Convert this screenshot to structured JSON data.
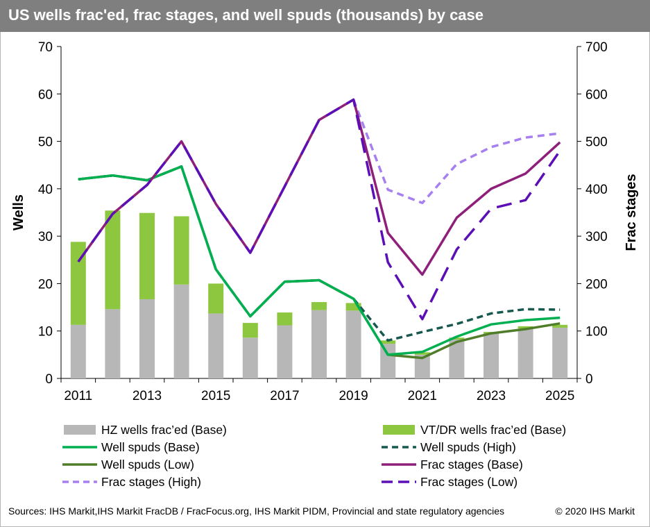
{
  "title": "US wells frac'ed, frac stages, and well spuds (thousands) by case",
  "footer": {
    "sources": "Sources: IHS Markit,IHS Markit FracDB / FracFocus.org, IHS Markit PIDM, Provincial and state regulatory agencies",
    "copyright": "© 2020 IHS Markit"
  },
  "colors": {
    "title_bar": "#7f7f7f",
    "hz_bar": "#b7b7b7",
    "vt_bar": "#8dc63f",
    "spuds_base": "#00b050",
    "spuds_high": "#17584f",
    "spuds_low": "#4f7d29",
    "frac_base": "#8e1f7a",
    "frac_high": "#a67ff0",
    "frac_low": "#5b0fb5"
  },
  "legend": [
    {
      "key": "hz",
      "label": "HZ wells frac’ed (Base)"
    },
    {
      "key": "vt",
      "label": "VT/DR wells frac’ed (Base)"
    },
    {
      "key": "spuds_base",
      "label": "Well spuds (Base)"
    },
    {
      "key": "spuds_high",
      "label": "Well spuds (High)"
    },
    {
      "key": "spuds_low",
      "label": "Well spuds (Low)"
    },
    {
      "key": "frac_base",
      "label": "Frac stages (Base)"
    },
    {
      "key": "frac_high",
      "label": "Frac stages (High)"
    },
    {
      "key": "frac_low",
      "label": "Frac stages (Low)"
    }
  ],
  "chart_data": {
    "type": "bar",
    "title": "US wells frac'ed, frac stages, and well spuds (thousands) by case",
    "ylabel": "Wells",
    "y2label": "Frac stages",
    "ylim": [
      0,
      70
    ],
    "y2lim": [
      0,
      700
    ],
    "yticks": [
      "0",
      "10",
      "20",
      "30",
      "40",
      "50",
      "60",
      "70"
    ],
    "y2ticks": [
      "0",
      "100",
      "200",
      "300",
      "400",
      "500",
      "600",
      "700"
    ],
    "x": [
      2011,
      2012,
      2013,
      2014,
      2015,
      2016,
      2017,
      2018,
      2019,
      2020,
      2021,
      2022,
      2023,
      2024,
      2025
    ],
    "xticks": [
      "2011",
      "2013",
      "2015",
      "2017",
      "2019",
      "2021",
      "2023",
      "2025"
    ],
    "grid": false,
    "legend_position": "bottom",
    "bars": [
      {
        "key": "hz",
        "name": "HZ wells frac’ed (Base)",
        "axis": "left",
        "stacked": true,
        "values": [
          11.3,
          14.6,
          16.7,
          19.8,
          13.7,
          8.6,
          11.2,
          14.4,
          14.3,
          7.3,
          5.0,
          8.2,
          9.4,
          10.5,
          10.7
        ]
      },
      {
        "key": "vt",
        "name": "VT/DR wells frac’ed (Base)",
        "axis": "left",
        "stacked": true,
        "values": [
          17.5,
          20.8,
          18.2,
          14.4,
          6.3,
          3.1,
          2.7,
          1.7,
          1.6,
          0.7,
          0.5,
          0.4,
          0.4,
          0.5,
          0.6
        ]
      }
    ],
    "series": [
      {
        "key": "spuds_base",
        "name": "Well spuds (Base)",
        "axis": "left",
        "dash": "solid",
        "x": [
          2011,
          2012,
          2013,
          2014,
          2015,
          2016,
          2017,
          2018,
          2019,
          2020,
          2021,
          2022,
          2023,
          2024,
          2025
        ],
        "values": [
          42.0,
          42.8,
          41.8,
          44.7,
          23.0,
          13.1,
          20.4,
          20.7,
          16.8,
          5.0,
          5.6,
          8.8,
          11.4,
          12.3,
          12.8
        ]
      },
      {
        "key": "spuds_high",
        "name": "Well spuds (High)",
        "axis": "left",
        "dash": "dashed",
        "x": [
          2011,
          2012,
          2013,
          2014,
          2015,
          2016,
          2017,
          2018,
          2019,
          2020,
          2021,
          2022,
          2023,
          2024,
          2025
        ],
        "values": [
          42.0,
          42.8,
          41.8,
          44.7,
          23.0,
          13.1,
          20.4,
          20.7,
          16.8,
          8.0,
          9.8,
          11.5,
          13.7,
          14.6,
          14.5
        ]
      },
      {
        "key": "spuds_low",
        "name": "Well spuds (Low)",
        "axis": "left",
        "dash": "solid",
        "x": [
          2011,
          2012,
          2013,
          2014,
          2015,
          2016,
          2017,
          2018,
          2019,
          2020,
          2021,
          2022,
          2023,
          2024,
          2025
        ],
        "values": [
          42.0,
          42.8,
          41.8,
          44.7,
          23.0,
          13.1,
          20.4,
          20.7,
          16.8,
          5.0,
          4.3,
          7.7,
          9.5,
          10.4,
          11.6
        ]
      },
      {
        "key": "frac_base",
        "name": "Frac stages (Base)",
        "axis": "right",
        "dash": "solid",
        "x": [
          2011,
          2012,
          2013,
          2014,
          2015,
          2016,
          2017,
          2018,
          2019,
          2020,
          2021,
          2022,
          2023,
          2024,
          2025
        ],
        "values": [
          246,
          347,
          408,
          500,
          368,
          265,
          405,
          545,
          588,
          307,
          219,
          339,
          400,
          432,
          498
        ]
      },
      {
        "key": "frac_high",
        "name": "Frac stages (High)",
        "axis": "right",
        "dash": "dashed",
        "x": [
          2019,
          2020,
          2021,
          2022,
          2023,
          2024,
          2025
        ],
        "values": [
          588,
          398,
          370,
          452,
          488,
          508,
          517
        ]
      },
      {
        "key": "frac_low",
        "name": "Frac stages (Low)",
        "axis": "right",
        "dash": "longdash",
        "x": [
          2011,
          2012,
          2013,
          2014,
          2015,
          2016,
          2017,
          2018,
          2019,
          2020,
          2021,
          2022,
          2023,
          2024,
          2025
        ],
        "values": [
          246,
          347,
          408,
          500,
          368,
          265,
          405,
          545,
          588,
          245,
          125,
          272,
          358,
          376,
          480
        ]
      }
    ]
  }
}
